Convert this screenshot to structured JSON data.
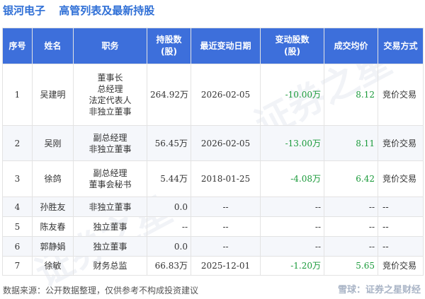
{
  "title": {
    "company": "银河电子",
    "subtitle": "高管列表及最新持股"
  },
  "table": {
    "headers": [
      "序号",
      "姓名",
      "职务",
      "持股数\n(股)",
      "最近变动日期",
      "变动股数\n(股)",
      "成交均价",
      "交易方式"
    ],
    "rows": [
      {
        "idx": "1",
        "name": "吴建明",
        "roles": [
          "董事长",
          "总经理",
          "法定代表人",
          "非独立董事"
        ],
        "shares": "264.92万",
        "date": "2026-02-05",
        "change": "-10.00万",
        "price": "8.12",
        "method": "竞价交易"
      },
      {
        "idx": "2",
        "name": "吴刚",
        "roles": [
          "副总经理",
          "非独立董事"
        ],
        "shares": "56.45万",
        "date": "2026-02-05",
        "change": "-13.00万",
        "price": "8.11",
        "method": "竞价交易"
      },
      {
        "idx": "3",
        "name": "徐鸽",
        "roles": [
          "副总经理",
          "董事会秘书"
        ],
        "shares": "5.44万",
        "date": "2018-01-25",
        "change": "-4.08万",
        "price": "6.42",
        "method": "竞价交易"
      },
      {
        "idx": "4",
        "name": "孙胜友",
        "roles": [
          "非独立董事"
        ],
        "shares": "0.0",
        "date": "--",
        "change": "--",
        "price": "--",
        "method": "--"
      },
      {
        "idx": "5",
        "name": "陈友春",
        "roles": [
          "独立董事"
        ],
        "shares": "--",
        "date": "--",
        "change": "--",
        "price": "--",
        "method": "--"
      },
      {
        "idx": "6",
        "name": "郭静娟",
        "roles": [
          "独立董事"
        ],
        "shares": "0.0",
        "date": "--",
        "change": "--",
        "price": "--",
        "method": "--"
      },
      {
        "idx": "7",
        "name": "徐敏",
        "roles": [
          "财务总监"
        ],
        "shares": "66.83万",
        "date": "2025-12-01",
        "change": "-1.20万",
        "price": "5.65",
        "method": "竞价交易"
      }
    ]
  },
  "footer": {
    "source": "数据来源：公开数据整理，仅供参考不构成投资建议",
    "brand": "雪球：证券之星财经"
  },
  "colors": {
    "header_bg": "#3d6fdb",
    "title": "#2f6fd6",
    "change": "#1a9a3a"
  }
}
